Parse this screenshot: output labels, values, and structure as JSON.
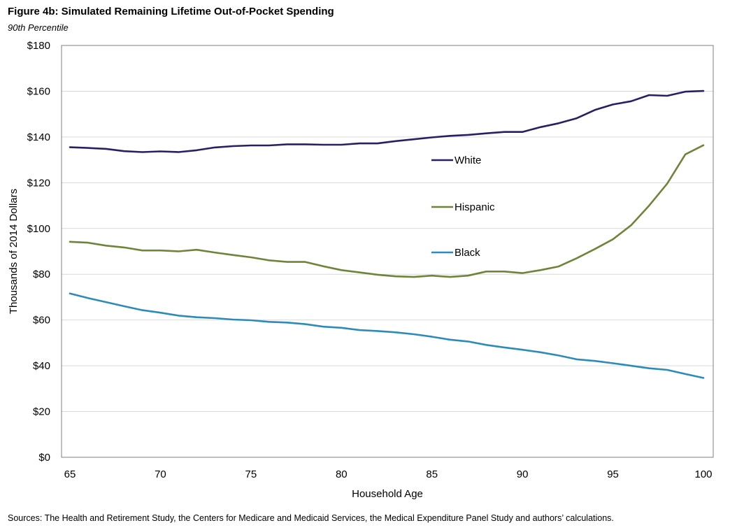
{
  "chart_data": {
    "type": "line",
    "title": "Figure 4b: Simulated Remaining Lifetime Out-of-Pocket Spending",
    "subtitle": "90th Percentile",
    "xlabel": "Household Age",
    "ylabel": "Thousands of 2014 Dollars",
    "xlim": [
      65,
      100
    ],
    "ylim": [
      0,
      180
    ],
    "x_ticks": [
      65,
      70,
      75,
      80,
      85,
      90,
      95,
      100
    ],
    "y_ticks": [
      0,
      20,
      40,
      60,
      80,
      100,
      120,
      140,
      160,
      180
    ],
    "y_tick_labels": [
      "$0",
      "$20",
      "$40",
      "$60",
      "$80",
      "$100",
      "$120",
      "$140",
      "$160",
      "$180"
    ],
    "x": [
      65,
      66,
      67,
      68,
      69,
      70,
      71,
      72,
      73,
      74,
      75,
      76,
      77,
      78,
      79,
      80,
      81,
      82,
      83,
      84,
      85,
      86,
      87,
      88,
      89,
      90,
      91,
      92,
      93,
      94,
      95,
      96,
      97,
      98,
      99,
      100
    ],
    "series": [
      {
        "name": "White",
        "color": "#2b1f63",
        "values": [
          135.5,
          135.2,
          134.8,
          133.8,
          133.4,
          133.7,
          133.4,
          134.2,
          135.4,
          136.0,
          136.3,
          136.3,
          136.8,
          136.8,
          136.6,
          136.6,
          137.2,
          137.2,
          138.2,
          139.0,
          139.8,
          140.5,
          140.9,
          141.6,
          142.2,
          142.2,
          144.3,
          146.0,
          148.2,
          151.8,
          154.2,
          155.6,
          158.3,
          158.0,
          159.8,
          160.1
        ]
      },
      {
        "name": "Hispanic",
        "color": "#6f843a",
        "values": [
          94.2,
          93.8,
          92.5,
          91.7,
          90.4,
          90.4,
          90.0,
          90.7,
          89.5,
          88.4,
          87.4,
          86.1,
          85.4,
          85.4,
          83.5,
          81.8,
          80.8,
          79.8,
          79.1,
          78.8,
          79.4,
          78.8,
          79.4,
          81.2,
          81.2,
          80.5,
          81.8,
          83.4,
          87.0,
          91.0,
          95.3,
          101.4,
          110.0,
          119.6,
          132.4,
          136.4
        ]
      },
      {
        "name": "Black",
        "color": "#2e8bb8",
        "values": [
          71.6,
          69.6,
          67.8,
          66.0,
          64.3,
          63.2,
          61.9,
          61.2,
          60.8,
          60.2,
          59.9,
          59.2,
          58.9,
          58.2,
          57.1,
          56.6,
          55.6,
          55.2,
          54.6,
          53.8,
          52.7,
          51.4,
          50.6,
          49.1,
          48.0,
          47.0,
          45.9,
          44.5,
          42.8,
          42.1,
          41.1,
          40.0,
          38.9,
          38.2,
          36.4,
          34.7
        ]
      }
    ],
    "legend": [
      "White",
      "Hispanic",
      "Black"
    ],
    "grid": "horizontal"
  },
  "footer": {
    "source": "Sources: The Health and Retirement Study, the Centers for Medicare and Medicaid Services, the Medical Expenditure Panel Study and authors’ calculations."
  }
}
